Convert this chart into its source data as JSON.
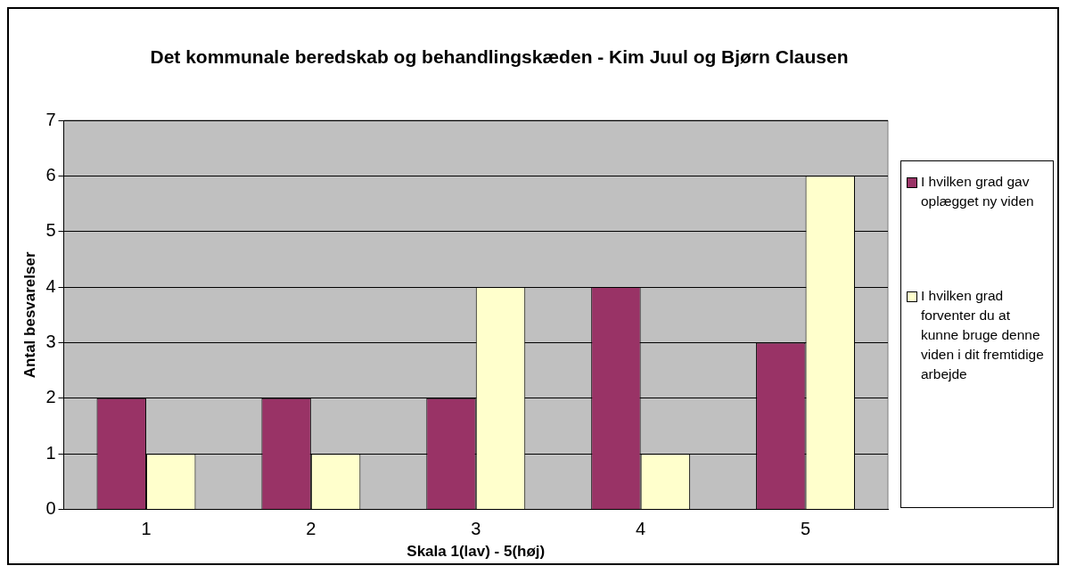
{
  "chart_data": {
    "type": "bar",
    "title": "Det kommunale beredskab og behandlingskæden - Kim Juul og Bjørn Clausen",
    "xlabel": "Skala 1(lav) - 5(høj)",
    "ylabel": "Antal besvarelser",
    "categories": [
      "1",
      "2",
      "3",
      "4",
      "5"
    ],
    "series": [
      {
        "name": "I hvilken grad gav oplægget ny viden",
        "color": "#993366",
        "values": [
          2,
          2,
          2,
          4,
          3
        ]
      },
      {
        "name": "I hvilken grad forventer du at kunne bruge denne viden i dit fremtidige arbejde",
        "color": "#ffffcc",
        "values": [
          1,
          1,
          4,
          1,
          6
        ]
      }
    ],
    "ylim": [
      0,
      7
    ],
    "yticks": [
      0,
      1,
      2,
      3,
      4,
      5,
      6,
      7
    ],
    "grid": "y",
    "legend": "right"
  }
}
